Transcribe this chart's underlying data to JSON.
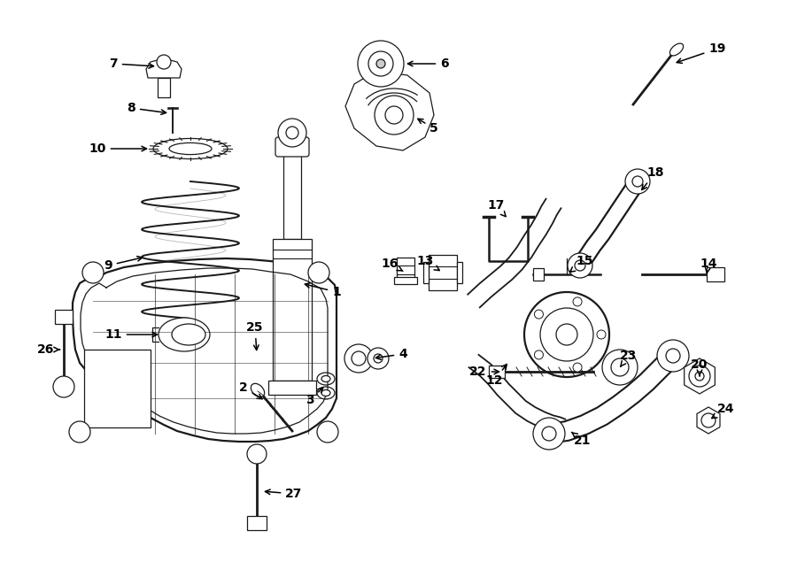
{
  "bg_color": "#ffffff",
  "line_color": "#1a1a1a",
  "lw_main": 1.3,
  "lw_thin": 0.9,
  "lw_thick": 2.0,
  "label_fontsize": 10,
  "figsize": [
    9.0,
    6.61
  ],
  "dpi": 100
}
